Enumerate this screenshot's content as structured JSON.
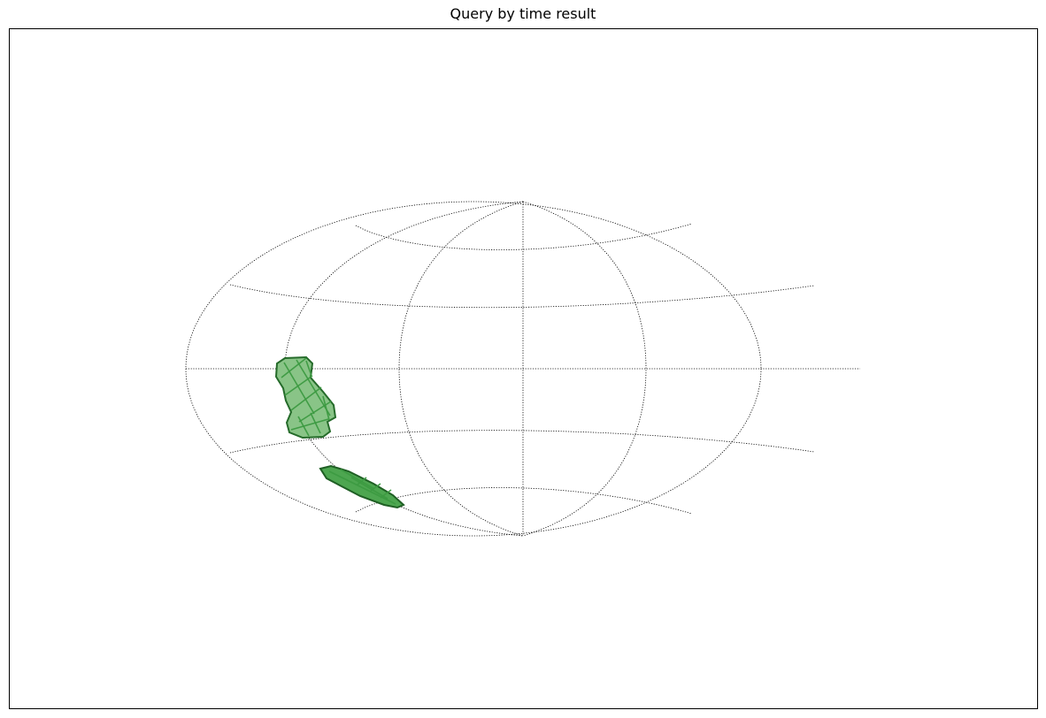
{
  "title": "Query by time result",
  "projection": "aitoff/hammer-like all-sky",
  "graticule": {
    "parallels_deg": [
      -60,
      -30,
      0,
      30,
      60
    ],
    "meridians_deg": [
      -120,
      -60,
      0,
      60,
      120
    ]
  },
  "regions": [
    {
      "name": "upper-coverage-region",
      "fill_color": "#89c487",
      "edge_color": "#256b2a",
      "tile_color": "#3c9a41"
    },
    {
      "name": "lower-coverage-region",
      "fill_color": "#4da650",
      "edge_color": "#1f5f24",
      "tile_color": "#3c9a41"
    }
  ]
}
